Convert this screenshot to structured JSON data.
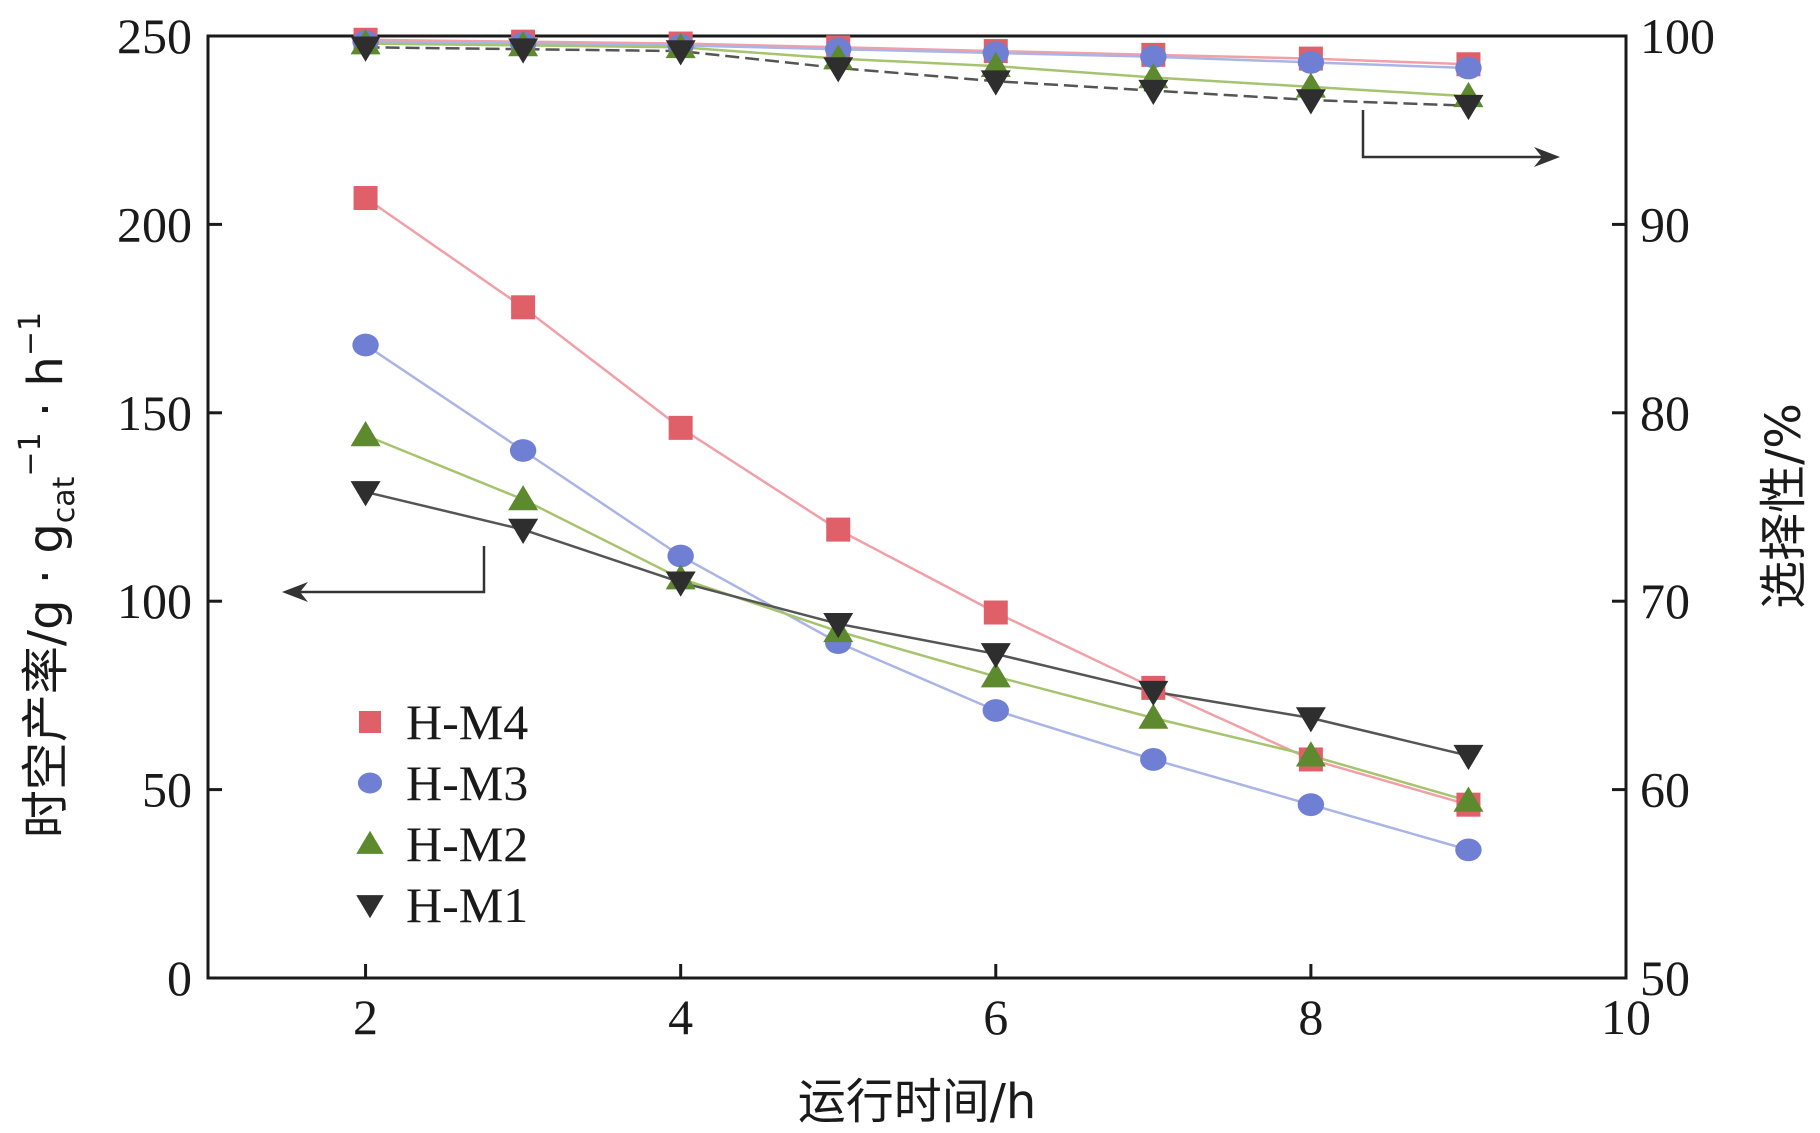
{
  "chart_data": {
    "type": "line",
    "xlabel": "运行时间/h",
    "ylabel_left": "时空产率/g · g",
    "ylabel_left_sub": "cat",
    "ylabel_left_sup1": "−1",
    "ylabel_left_tail": " · h",
    "ylabel_left_sup2": "−1",
    "ylabel_right": "选择性/%",
    "xlim": [
      1,
      10
    ],
    "ylim_left": [
      0,
      250
    ],
    "ylim_right": [
      50,
      100
    ],
    "x_ticks": [
      2,
      4,
      6,
      8,
      10
    ],
    "y_left_ticks": [
      0,
      50,
      100,
      150,
      200,
      250
    ],
    "y_right_ticks": [
      50,
      60,
      70,
      80,
      90,
      100
    ],
    "x_tick_labels": [
      "2",
      "4",
      "6",
      "8",
      "10"
    ],
    "y_left_tick_labels": [
      "0",
      "50",
      "100",
      "150",
      "200",
      "250"
    ],
    "y_right_tick_labels": [
      "50",
      "60",
      "70",
      "80",
      "90",
      "100"
    ],
    "legend_position": "lower-left",
    "x": [
      2,
      3,
      4,
      5,
      6,
      7,
      8,
      9
    ],
    "series": [
      {
        "name": "H-M4",
        "marker": "square",
        "color": "#e0606a",
        "line_color": "#f0a0a6",
        "yield": [
          207,
          178,
          146,
          119,
          97,
          77,
          58,
          46
        ],
        "selectivity": [
          99.8,
          99.7,
          99.6,
          99.4,
          99.2,
          99.0,
          98.8,
          98.5
        ]
      },
      {
        "name": "H-M3",
        "marker": "circle",
        "color": "#6f7fd4",
        "line_color": "#aab4e6",
        "yield": [
          168,
          140,
          112,
          89,
          71,
          58,
          46,
          34
        ],
        "selectivity": [
          99.7,
          99.6,
          99.5,
          99.3,
          99.1,
          98.9,
          98.6,
          98.3
        ]
      },
      {
        "name": "H-M2",
        "marker": "triangle-up",
        "color": "#5d8a2e",
        "line_color": "#a6c46e",
        "yield": [
          144,
          127,
          106,
          92,
          80,
          69,
          59,
          47
        ],
        "selectivity": [
          99.6,
          99.5,
          99.4,
          98.8,
          98.4,
          97.8,
          97.3,
          96.8
        ]
      },
      {
        "name": "H-M1",
        "marker": "triangle-down",
        "color": "#2e2e2e",
        "line_color": "#555555",
        "yield": [
          129,
          119,
          105,
          94,
          86,
          76,
          69,
          59
        ],
        "selectivity": [
          99.4,
          99.3,
          99.2,
          98.3,
          97.6,
          97.1,
          96.6,
          96.3
        ]
      }
    ]
  }
}
